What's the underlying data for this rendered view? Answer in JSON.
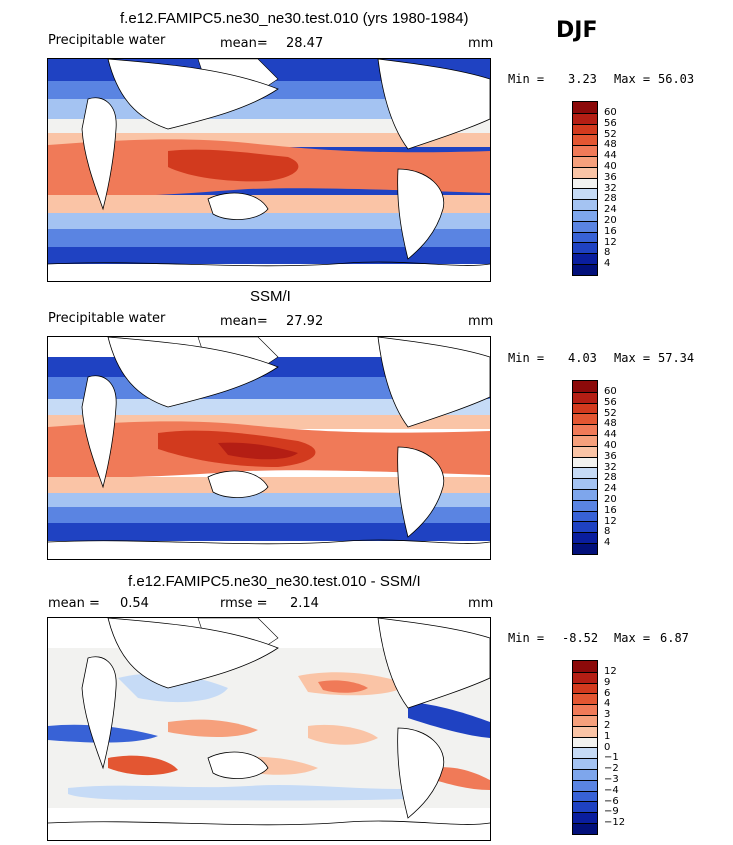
{
  "season": "DJF",
  "panels": [
    {
      "title": "f.e12.FAMIPC5.ne30_ne30.test.010 (yrs 1980-1984)",
      "left_label": "Precipitable water",
      "stat_label": "mean=",
      "stat_value": "28.47",
      "stat2_label": "",
      "stat2_value": "",
      "units": "mm",
      "min_label": "Min =",
      "min_value": "3.23",
      "max_label": "Max =",
      "max_value": "56.03",
      "colorbar_labels": [
        "60",
        "56",
        "52",
        "48",
        "44",
        "40",
        "36",
        "32",
        "28",
        "24",
        "20",
        "16",
        "12",
        "8",
        "4"
      ],
      "colors": [
        "#8c0a0a",
        "#b41e14",
        "#d23a1e",
        "#e35632",
        "#f07a58",
        "#f6a07c",
        "#fac4a6",
        "#f2f2f0",
        "#c6dbf6",
        "#a4c3f2",
        "#7ea6ec",
        "#5a84e2",
        "#3862d6",
        "#1f42c2",
        "#0a1e9e",
        "#02107a"
      ]
    },
    {
      "title": "SSM/I",
      "left_label": "Precipitable water",
      "stat_label": "mean=",
      "stat_value": "27.92",
      "stat2_label": "",
      "stat2_value": "",
      "units": "mm",
      "min_label": "Min =",
      "min_value": "4.03",
      "max_label": "Max =",
      "max_value": "57.34",
      "colorbar_labels": [
        "60",
        "56",
        "52",
        "48",
        "44",
        "40",
        "36",
        "32",
        "28",
        "24",
        "20",
        "16",
        "12",
        "8",
        "4"
      ],
      "colors": [
        "#8c0a0a",
        "#b41e14",
        "#d23a1e",
        "#e35632",
        "#f07a58",
        "#f6a07c",
        "#fac4a6",
        "#f2f2f0",
        "#c6dbf6",
        "#a4c3f2",
        "#7ea6ec",
        "#5a84e2",
        "#3862d6",
        "#1f42c2",
        "#0a1e9e",
        "#02107a"
      ]
    },
    {
      "title": "f.e12.FAMIPC5.ne30_ne30.test.010 - SSM/I",
      "left_label": "mean =",
      "stat_label": "0.54",
      "stat_value": "",
      "stat2_label": "rmse =",
      "stat2_value": "2.14",
      "units": "mm",
      "min_label": "Min =",
      "min_value": "-8.52",
      "max_label": "Max =",
      "max_value": "6.87",
      "colorbar_labels": [
        "12",
        "9",
        "6",
        "4",
        "3",
        "2",
        "1",
        "0",
        "−1",
        "−2",
        "−3",
        "−4",
        "−6",
        "−9",
        "−12"
      ],
      "colors": [
        "#8c0a0a",
        "#b41e14",
        "#d23a1e",
        "#e35632",
        "#f07a58",
        "#f6a07c",
        "#fac4a6",
        "#f2f2f0",
        "#c6dbf6",
        "#a4c3f2",
        "#7ea6ec",
        "#5a84e2",
        "#3862d6",
        "#1f42c2",
        "#0a1e9e",
        "#02107a"
      ]
    }
  ]
}
